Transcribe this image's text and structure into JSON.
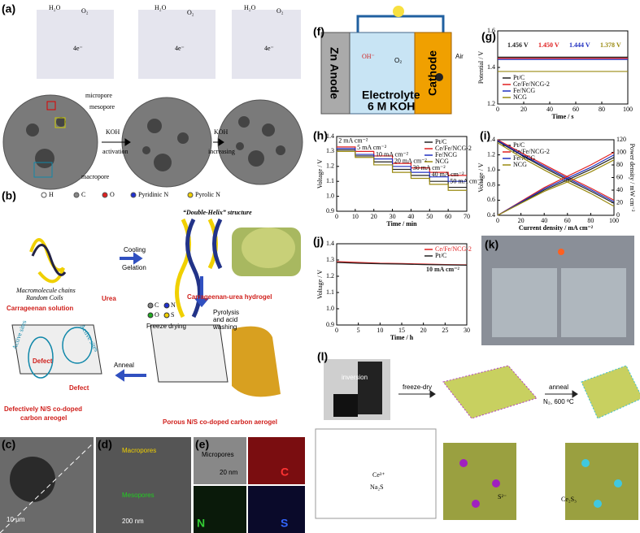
{
  "labels": [
    "(a)",
    "(b)",
    "(c)",
    "(d)",
    "(e)",
    "(f)",
    "(g)",
    "(h)",
    "(i)",
    "(j)",
    "(k)",
    "(l)"
  ],
  "a": {
    "molecules": [
      "H₂O",
      "O₂",
      "4e⁻"
    ],
    "pores": [
      "micropore",
      "mesopore",
      "macropore"
    ],
    "steps": [
      "KOH",
      "activation",
      "KOH",
      "increasing"
    ],
    "legend": [
      "H",
      "C",
      "O",
      "Pyridinic N",
      "Pyrolic N"
    ]
  },
  "b": {
    "chains": [
      "Macromolecule chains",
      "Random Coils"
    ],
    "solution": "Carrageenan solution",
    "urea": "Urea",
    "process": [
      "Cooling",
      "Gelation"
    ],
    "helix": "“Double-Helix” structure",
    "hydrogel": "Carrageenan-urea hydrogel",
    "legend": [
      "C",
      "N",
      "O",
      "S"
    ],
    "freeze": "Freeze drying",
    "pyrolysis": [
      "Pyrolysis",
      "and acid",
      "washing"
    ],
    "anneal": "Anneal",
    "sites": [
      "Active sites",
      "Active sites",
      "Defect",
      "Defect"
    ],
    "defective": [
      "Defectively N/S co-doped",
      "carbon areogel"
    ],
    "porous": "Porous N/S co-doped carbon aerogel"
  },
  "c": {
    "scale": "10 μm"
  },
  "d": {
    "labels": [
      "Macropores",
      "Mesopores"
    ],
    "scale": "200 nm"
  },
  "e": {
    "labels": [
      "Micropores",
      "20 nm"
    ],
    "maps": [
      "C",
      "N",
      "S"
    ]
  },
  "f": {
    "anode": "Zn Anode",
    "cathode": "Cathode",
    "air": "Air",
    "ion": "OH⁻",
    "gas": "O₂",
    "electrolyte": [
      "Electrolyte",
      "6 M KOH"
    ]
  },
  "l": {
    "steps": [
      "inversion",
      "freeze-dry",
      "anneal",
      "N₂, 600 ºC"
    ],
    "species": [
      "Ce³⁺",
      "Na₂S",
      "S²⁻",
      "Ce₂S₃"
    ]
  },
  "chart_data": [
    {
      "type": "line",
      "xlabel": "Time / s",
      "ylabel": "Potential / V",
      "x": [
        0,
        25,
        50,
        75,
        100
      ],
      "xlim": [
        0,
        100
      ],
      "xticks": [
        0,
        20,
        40,
        60,
        80,
        100
      ],
      "ylim": [
        1.2,
        1.6
      ],
      "yticks": [
        1.2,
        1.4,
        1.6
      ],
      "legend": "lower left",
      "annotations": [
        {
          "text": "1.456 V",
          "color": "#222222"
        },
        {
          "text": "1.450 V",
          "color": "#e02020"
        },
        {
          "text": "1.444 V",
          "color": "#2030c0"
        },
        {
          "text": "1.378 V",
          "color": "#9a8a10"
        }
      ],
      "series": [
        {
          "name": "Pt/C",
          "color": "#222222",
          "values": [
            1.456,
            1.456,
            1.456,
            1.456,
            1.456
          ]
        },
        {
          "name": "Ce/Fe/NCG-2",
          "color": "#e02020",
          "values": [
            1.45,
            1.45,
            1.45,
            1.45,
            1.45
          ]
        },
        {
          "name": "Fe/NCG",
          "color": "#2030c0",
          "values": [
            1.444,
            1.444,
            1.444,
            1.444,
            1.444
          ]
        },
        {
          "name": "NCG",
          "color": "#9a8a10",
          "values": [
            1.378,
            1.378,
            1.378,
            1.378,
            1.378
          ]
        }
      ]
    },
    {
      "type": "line",
      "xlabel": "Time / min",
      "ylabel": "Voltage / V",
      "x": [
        0,
        10,
        10,
        20,
        20,
        30,
        30,
        40,
        40,
        50,
        50,
        60,
        60,
        70
      ],
      "xlim": [
        0,
        70
      ],
      "xticks": [
        0,
        10,
        20,
        30,
        40,
        50,
        60,
        70
      ],
      "ylim": [
        0.9,
        1.4
      ],
      "yticks": [
        0.9,
        {
          "value": 1,
          "label": "1.0"
        },
        1.1,
        1.2,
        1.3,
        1.4
      ],
      "legend": "upper right",
      "step_labels": [
        "2 mA cm⁻²",
        "5 mA cm⁻²",
        "10 mA cm⁻²",
        "20 mA cm⁻²",
        "30 mA cm⁻²",
        "40 mA cm⁻²",
        "50 mA cm⁻²"
      ],
      "series": [
        {
          "name": "Pt/C",
          "color": "#222222",
          "values": [
            1.31,
            1.31,
            1.27,
            1.27,
            1.23,
            1.23,
            1.18,
            1.18,
            1.14,
            1.14,
            1.1,
            1.1,
            1.06,
            1.06
          ]
        },
        {
          "name": "Ce/Fe/NCG-2",
          "color": "#e02020",
          "values": [
            1.33,
            1.33,
            1.3,
            1.3,
            1.27,
            1.27,
            1.22,
            1.22,
            1.19,
            1.19,
            1.16,
            1.16,
            1.14,
            1.14
          ]
        },
        {
          "name": "Fe/NCG",
          "color": "#2030c0",
          "values": [
            1.32,
            1.32,
            1.28,
            1.28,
            1.25,
            1.25,
            1.2,
            1.2,
            1.16,
            1.16,
            1.13,
            1.13,
            1.1,
            1.1
          ]
        },
        {
          "name": "NCG",
          "color": "#9a8a10",
          "values": [
            1.3,
            1.3,
            1.26,
            1.26,
            1.21,
            1.21,
            1.16,
            1.16,
            1.12,
            1.12,
            1.08,
            1.08,
            1.04,
            1.04
          ]
        }
      ]
    },
    {
      "type": "line",
      "xlabel": "Current density / mA cm⁻²",
      "ylabel": "Voltage / V",
      "y2label": "Power density / mW cm⁻²",
      "x": [
        0,
        20,
        40,
        60,
        80,
        100
      ],
      "xlim": [
        0,
        100
      ],
      "xticks": [
        0,
        20,
        40,
        60,
        80,
        100
      ],
      "ylim": [
        0.4,
        1.4
      ],
      "yticks": [
        0.4,
        0.6,
        0.8,
        {
          "value": 1,
          "label": "1.0"
        },
        1.2,
        1.4
      ],
      "y2lim": [
        0,
        120
      ],
      "y2ticks": [
        0,
        20,
        40,
        60,
        80,
        100,
        120
      ],
      "legend": "upper left",
      "series": [
        {
          "name": "Pt/C",
          "color": "#222222",
          "values": [
            1.38,
            1.2,
            1.03,
            0.87,
            0.72,
            0.56
          ]
        },
        {
          "name": "Ce/Fe/NCG-2",
          "color": "#e02020",
          "values": [
            1.4,
            1.23,
            1.07,
            0.91,
            0.76,
            0.6
          ]
        },
        {
          "name": "Fe/NCG",
          "color": "#2030c0",
          "values": [
            1.39,
            1.21,
            1.05,
            0.89,
            0.74,
            0.58
          ]
        },
        {
          "name": "NCG",
          "color": "#9a8a10",
          "values": [
            1.36,
            1.17,
            1.0,
            0.84,
            0.69,
            0.52
          ]
        },
        {
          "axis": "y2",
          "color": "#222222",
          "values": [
            0,
            20,
            40,
            56,
            73,
            92
          ]
        },
        {
          "axis": "y2",
          "color": "#e02020",
          "values": [
            0,
            22,
            44,
            62,
            80,
            100
          ]
        },
        {
          "axis": "y2",
          "color": "#2030c0",
          "values": [
            0,
            21,
            42,
            59,
            76,
            96
          ]
        },
        {
          "axis": "y2",
          "color": "#9a8a10",
          "values": [
            0,
            19,
            38,
            53,
            69,
            88
          ]
        }
      ]
    },
    {
      "type": "line",
      "xlabel": "Time / h",
      "ylabel": "Voltage / V",
      "x": [
        0,
        5,
        10,
        15,
        20,
        25,
        30
      ],
      "xlim": [
        0,
        30
      ],
      "xticks": [
        0,
        5,
        10,
        15,
        20,
        25,
        30
      ],
      "ylim": [
        0.9,
        1.4
      ],
      "yticks": [
        0.9,
        {
          "value": 1,
          "label": "1.0"
        },
        1.1,
        1.2,
        1.3,
        1.4
      ],
      "legend": "upper right",
      "annotations": [
        {
          "text": "10 mA cm⁻²",
          "color": "#222222"
        }
      ],
      "series": [
        {
          "name": "Ce/Fe/NCG-2",
          "color": "#e02020",
          "values": [
            1.29,
            1.285,
            1.28,
            1.278,
            1.275,
            1.272,
            1.27
          ]
        },
        {
          "name": "Pt/C",
          "color": "#222222",
          "values": [
            1.285,
            1.28,
            1.277,
            1.275,
            1.272,
            1.27,
            1.268
          ]
        }
      ]
    }
  ]
}
